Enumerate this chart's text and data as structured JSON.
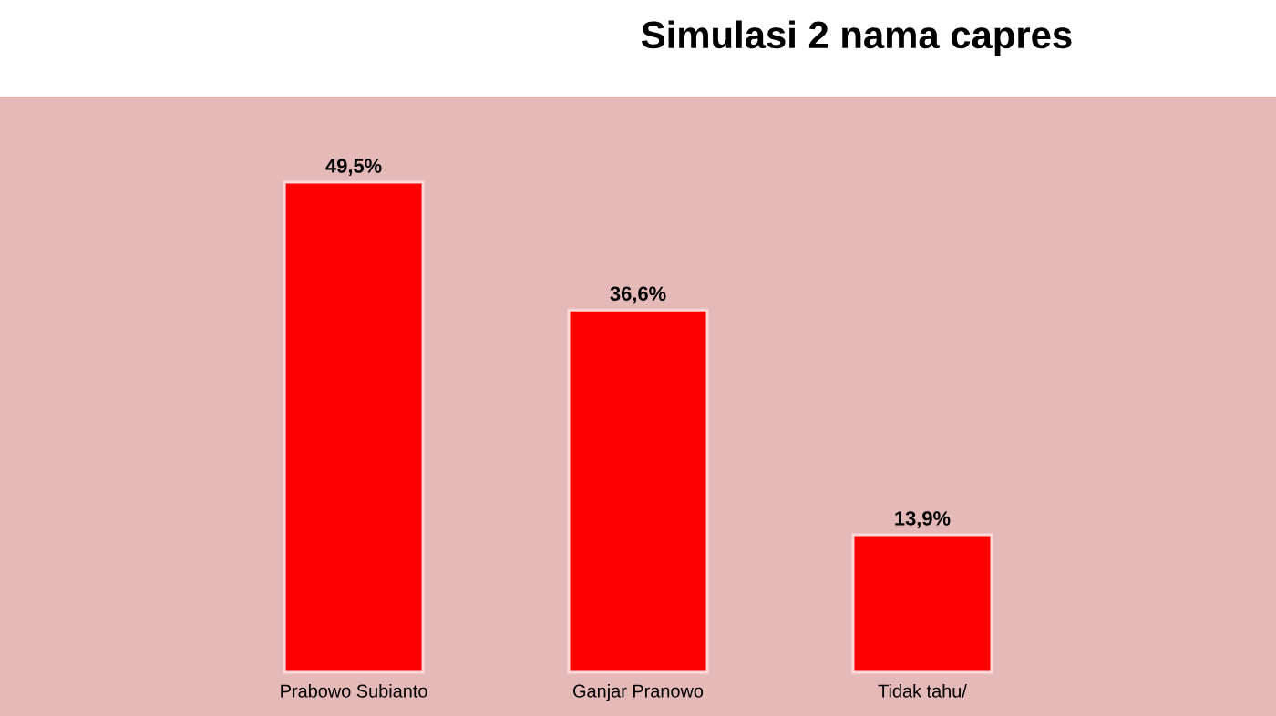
{
  "chart_data": {
    "type": "bar",
    "title": "Simulasi 2 nama capres",
    "categories": [
      "Prabowo Subianto",
      "Ganjar Pranowo",
      "Tidak tahu/"
    ],
    "values": [
      49.5,
      36.6,
      13.9
    ],
    "value_labels": [
      "49,5%",
      "36,6%",
      "13,9%"
    ],
    "color": "#ff0000"
  }
}
